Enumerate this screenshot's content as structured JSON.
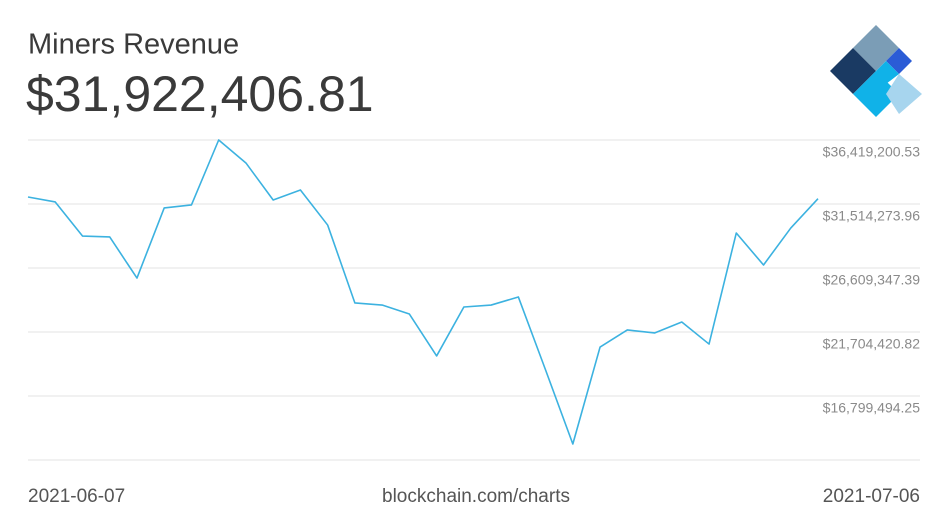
{
  "chart_data": {
    "type": "line",
    "title": "Miners Revenue",
    "subtitle": "$31,922,406.81",
    "source": "blockchain.com/charts",
    "categories": [
      "2021-06-07",
      null,
      null,
      null,
      null,
      null,
      null,
      null,
      null,
      null,
      null,
      null,
      null,
      null,
      null,
      null,
      null,
      null,
      null,
      null,
      null,
      null,
      null,
      null,
      null,
      null,
      null,
      null,
      null,
      "2021-07-06"
    ],
    "series": [
      {
        "name": "Miners Revenue",
        "color": "#3cb2e0",
        "values": [
          32050000,
          31670000,
          29060000,
          28990000,
          25840000,
          31210000,
          31440000,
          36419200.53,
          34660000,
          31820000,
          32590000,
          29900000,
          23930000,
          23770000,
          23080000,
          19870000,
          23620000,
          23770000,
          24390000,
          18790000,
          13120000,
          20550000,
          21860000,
          21630000,
          22470000,
          20780000,
          29290000,
          26840000,
          29670000,
          31922406.81
        ]
      }
    ],
    "ylim": [
      11894567.68,
      36419200.53
    ],
    "yticks": [
      {
        "value": 36419200.53,
        "label": "$36,419,200.53"
      },
      {
        "value": 31514273.96,
        "label": "$31,514,273.96"
      },
      {
        "value": 26609347.39,
        "label": "$26,609,347.39"
      },
      {
        "value": 21704420.82,
        "label": "$21,704,420.82"
      },
      {
        "value": 16799494.25,
        "label": "$16,799,494.25"
      }
    ],
    "grid": true
  }
}
